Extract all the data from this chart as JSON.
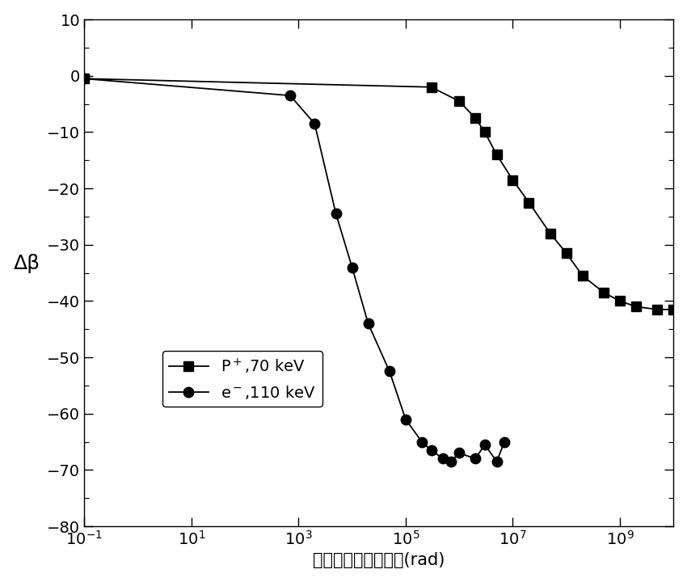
{
  "title": "",
  "xlabel": "氧化层电离吸收剂量(rad)",
  "ylabel": "Δβ",
  "ylim": [
    -80,
    10
  ],
  "yticks": [
    10,
    0,
    -10,
    -20,
    -30,
    -40,
    -50,
    -60,
    -70,
    -80
  ],
  "series1_label": "P$^+$,70 keV",
  "series2_label": "e$^-$,110 keV",
  "series1_x": [
    0.1,
    300000,
    1000000,
    2000000,
    3000000,
    5000000,
    10000000,
    20000000,
    50000000,
    100000000,
    200000000,
    500000000,
    1000000000,
    2000000000,
    5000000000,
    10000000000
  ],
  "series1_y": [
    -0.5,
    -2.0,
    -4.5,
    -7.5,
    -10.0,
    -14.0,
    -18.5,
    -22.5,
    -28.0,
    -31.5,
    -35.5,
    -38.5,
    -40.0,
    -41.0,
    -41.5,
    -41.5
  ],
  "series2_x": [
    0.1,
    700,
    2000,
    5000,
    10000,
    20000,
    50000,
    100000,
    200000,
    300000,
    500000,
    700000,
    1000000,
    2000000,
    3000000,
    5000000,
    7000000
  ],
  "series2_y": [
    -0.5,
    -3.5,
    -8.5,
    -24.5,
    -34.0,
    -44.0,
    -52.5,
    -61.0,
    -65.0,
    -66.5,
    -68.0,
    -68.5,
    -67.0,
    -68.0,
    -65.5,
    -68.5,
    -65.0
  ],
  "line_color": "#000000",
  "marker1": "s",
  "marker2": "o",
  "markersize1": 8,
  "markersize2": 9,
  "linewidth": 1.3,
  "background_color": "#ffffff",
  "xlabel_fontsize": 15,
  "ylabel_fontsize": 18,
  "tick_fontsize": 14,
  "legend_fontsize": 14
}
